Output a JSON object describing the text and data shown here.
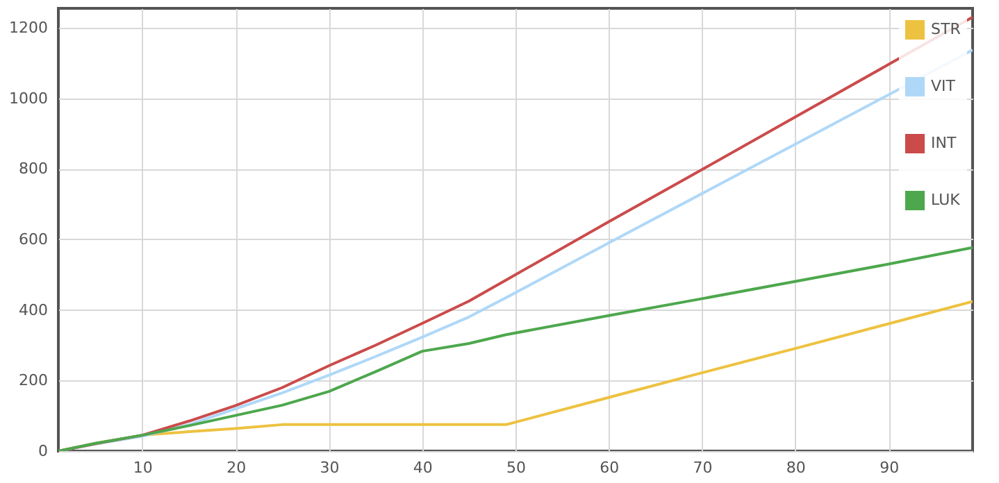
{
  "chart_data": {
    "type": "line",
    "x": [
      1,
      5,
      10,
      15,
      20,
      25,
      30,
      35,
      40,
      45,
      49,
      60,
      70,
      80,
      90,
      99
    ],
    "series": [
      {
        "name": "STR",
        "color": "#edc240",
        "values": [
          0,
          22,
          45,
          55,
          64,
          75,
          75,
          75,
          75,
          75,
          75,
          152,
          222,
          291,
          361,
          424
        ]
      },
      {
        "name": "VIT",
        "color": "#afd8f8",
        "values": [
          0,
          20,
          42,
          75,
          120,
          165,
          215,
          268,
          323,
          380,
          435,
          590,
          730,
          870,
          1010,
          1137
        ]
      },
      {
        "name": "INT",
        "color": "#cb4b4b",
        "values": [
          0,
          21,
          45,
          85,
          129,
          180,
          242,
          300,
          362,
          425,
          485,
          650,
          798,
          947,
          1096,
          1230
        ]
      },
      {
        "name": "LUK",
        "color": "#4da74d",
        "values": [
          0,
          22,
          45,
          72,
          101,
          130,
          169,
          225,
          283,
          305,
          330,
          384,
          432,
          481,
          530,
          577
        ]
      }
    ],
    "xlim": [
      1,
      99
    ],
    "xticks": [
      10,
      20,
      30,
      40,
      50,
      60,
      70,
      80,
      90
    ],
    "ylim": [
      0,
      1255
    ],
    "yticks": [
      0,
      200,
      400,
      600,
      800,
      1000,
      1200
    ],
    "grid": true,
    "legend": "top right",
    "marker": "none",
    "line_style": "solid"
  }
}
